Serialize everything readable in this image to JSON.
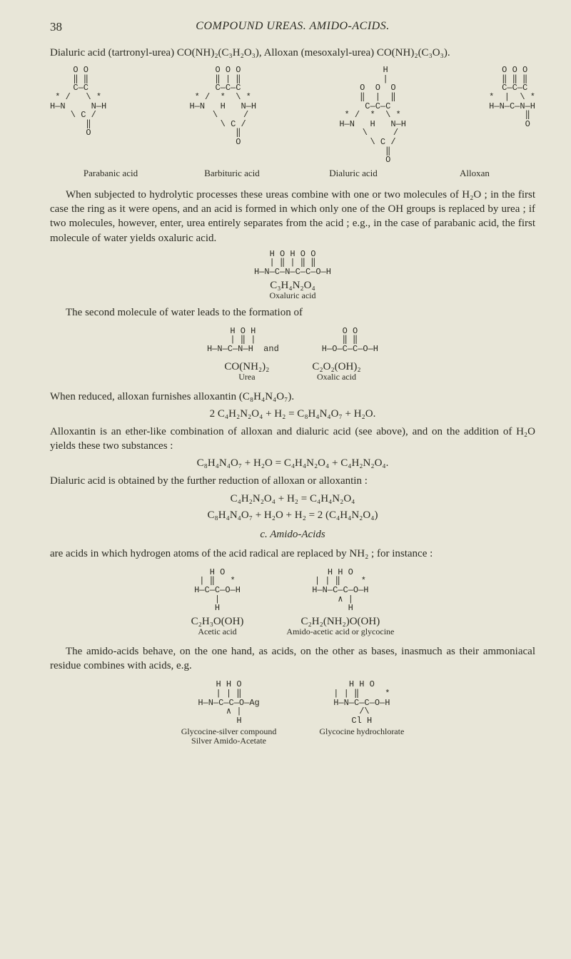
{
  "text_color": "#2b2b22",
  "bg_color": "#e8e6d8",
  "page_number": "38",
  "running_head": "COMPOUND UREAS.  AMIDO-ACIDS.",
  "intro_line": "Dialuric acid (tartronyl-urea) CO(NH)₂(C₃H₂O₃), Alloxan (mesoxalyl-urea) CO(NH)₂(C₃O₃).",
  "struct1": {
    "a": " O O\n ‖ ‖\n C—C\n* /   \\ *\nH—N     N—H\n  \\ C /\n    ‖\n    O",
    "b": "  O O O\n  ‖ | ‖\n  C—C—C\n* /  *  \\ *\nH—N   H   N—H\n   \\     /\n    \\ C /\n      ‖\n      O",
    "c": "     H\n     |\n  O  O  O\n  ‖  |  ‖\n  C—C—C\n* /  *  \\ *\nH—N   H   N—H\n   \\     /\n    \\ C /\n      ‖\n      O",
    "d": " O O O\n ‖ ‖ ‖\n C—C—C\n*  |  \\ *\nH—N—C—N—H\n      ‖\n      O",
    "label_a": "Parabanic acid",
    "label_b": "Barbituric acid",
    "label_c": "Dialuric acid",
    "label_d": "Alloxan"
  },
  "para1": "When subjected to hydrolytic processes these ureas combine with one or two molecules of H₂O ; in the first case the ring as it were opens, and an acid is formed in which only one of the OH groups is replaced by urea ; if two molecules, however, enter, urea entirely separates from the acid ; e.g., in the case of parabanic acid, the first molecule of water yields oxaluric acid.",
  "oxaluric_struct": "H O H O O\n| ‖ | ‖ ‖\nH—N—C—N—C—C—O—H",
  "oxaluric_formula": "C₃H₄N₂O₄",
  "oxaluric_name": "Oxaluric acid",
  "para2": "The second molecule of water leads to the formation of",
  "urea_struct": "H O H\n| ‖ |\nH—N—C—N—H  and",
  "oxalic_struct": "O O\n‖ ‖\nH—O—C—C—O—H",
  "urea_formula": "CO(NH₂)₂",
  "urea_name": "Urea",
  "oxalic_formula": "C₂O₂(OH)₂",
  "oxalic_name": "Oxalic acid",
  "para3": "When reduced, alloxan furnishes alloxantin (C₈H₄N₄O₇).",
  "eqn1": "2 C₄H₂N₂O₄ + H₂ = C₈H₄N₄O₇ + H₂O.",
  "para4": "Alloxantin is an ether-like combination of alloxan and dialuric acid (see above), and on the addition of H₂O yields these two substances :",
  "eqn2": "C₈H₄N₄O₇ + H₂O = C₄H₄N₂O₄ + C₄H₂N₂O₄.",
  "para5": "Dialuric acid is obtained by the further reduction of alloxan or alloxantin :",
  "eqn3a": "C₄H₂N₂O₄ + H₂ = C₄H₄N₂O₄",
  "eqn3b": "C₈H₄N₄O₇ + H₂O + H₂ = 2 (C₄H₄N₂O₄)",
  "section_c": "c. Amido-Acids",
  "para6": "are acids in which hydrogen atoms of the acid radical are replaced by NH₂ ; for instance :",
  "acetic_struct": "H O\n| ‖   *\nH—C—C—O—H\n|\nH",
  "glyco_struct": "H H O\n| | ‖    *\nH—N—C—C—O—H\n  ∧ |\n    H",
  "acetic_formula": "C₂H₃O(OH)",
  "acetic_name": "Acetic acid",
  "glyco_formula": "C₂H₂(NH₂)O(OH)",
  "glyco_name": "Amido-acetic acid or glycocine",
  "para7": "The amido-acids behave, on the one hand, as acids, on the other as bases, inasmuch as their ammoniacal residue combines with acids, e.g.",
  "silver_struct": "H H O\n| | ‖\nH—N—C—C—O—Ag\n  ∧ |\n    H",
  "hcl_struct": "H H O\n| | ‖     *\nH—N—C—C—O—H\n /\\\nCl H",
  "silver_name_a": "Glycocine-silver compound",
  "silver_name_b": "Silver Amido-Acetate",
  "hcl_name": "Glycocine hydrochlorate"
}
